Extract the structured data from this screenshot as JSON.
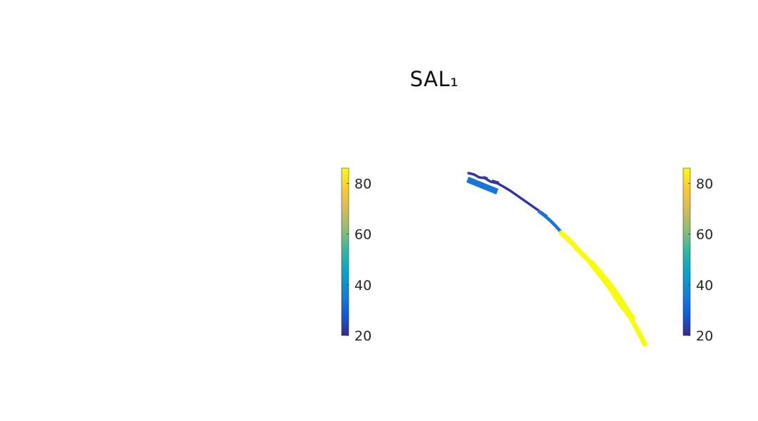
{
  "figure": {
    "title": "SAL₁"
  },
  "chart_data": [
    {
      "type": "colorbar",
      "name": "left colorbar",
      "colormap": "parula",
      "clim": [
        20,
        86
      ],
      "ticks": [
        20,
        40,
        60,
        80
      ],
      "tick_labels": [
        "20",
        "40",
        "60",
        "80"
      ]
    },
    {
      "type": "scatter",
      "name": "colored arc",
      "title": "SAL₁",
      "axes_visible": false,
      "color_scale": "parula",
      "clim": [
        20,
        86
      ],
      "segments": [
        {
          "name": "dark-blue segment",
          "color_value": 22,
          "color": "#33359E"
        },
        {
          "name": "blue rectangle",
          "color_value": 32,
          "color": "#1976D8"
        },
        {
          "name": "blue segment",
          "color_value": 32,
          "color": "#1976D8"
        },
        {
          "name": "yellow segment",
          "color_value": 86,
          "color": "#F9FB0E"
        }
      ]
    },
    {
      "type": "colorbar",
      "name": "right colorbar",
      "colormap": "parula",
      "clim": [
        20,
        86
      ],
      "ticks": [
        20,
        40,
        60,
        80
      ],
      "tick_labels": [
        "20",
        "40",
        "60",
        "80"
      ]
    }
  ]
}
